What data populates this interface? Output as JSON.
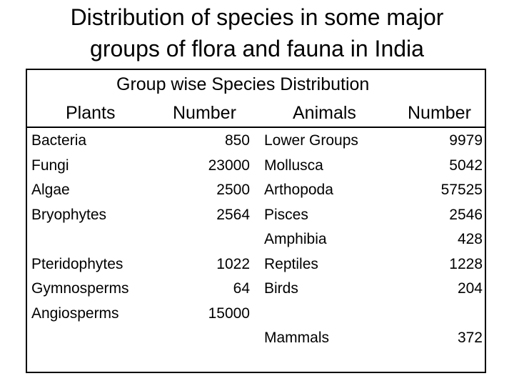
{
  "title_line1": "Distribution of species in some major",
  "title_line2": "groups of flora and fauna in India",
  "table": {
    "caption": "Group wise Species Distribution",
    "headers": {
      "plants": "Plants",
      "plants_number": "Number",
      "animals": "Animals",
      "animals_number": "Number"
    },
    "plants": [
      {
        "name": "Bacteria",
        "number": "850"
      },
      {
        "name": "Fungi",
        "number": "23000"
      },
      {
        "name": "Algae",
        "number": "2500"
      },
      {
        "name": "Bryophytes",
        "number": "2564"
      },
      {
        "name": "Pteridophytes",
        "number": "1022"
      },
      {
        "name": "Gymnosperms",
        "number": "64"
      },
      {
        "name": "Angiosperms",
        "number": "15000"
      }
    ],
    "animals": [
      {
        "name": "Lower Groups",
        "number": "9979"
      },
      {
        "name": "Mollusca",
        "number": "5042"
      },
      {
        "name": "Arthopoda",
        "number": "57525"
      },
      {
        "name": "Pisces",
        "number": "2546"
      },
      {
        "name": "Amphibia",
        "number": "428"
      },
      {
        "name": "Reptiles",
        "number": "1228"
      },
      {
        "name": "Birds",
        "number": "204"
      },
      {
        "name": "Mammals",
        "number": "372"
      }
    ]
  }
}
